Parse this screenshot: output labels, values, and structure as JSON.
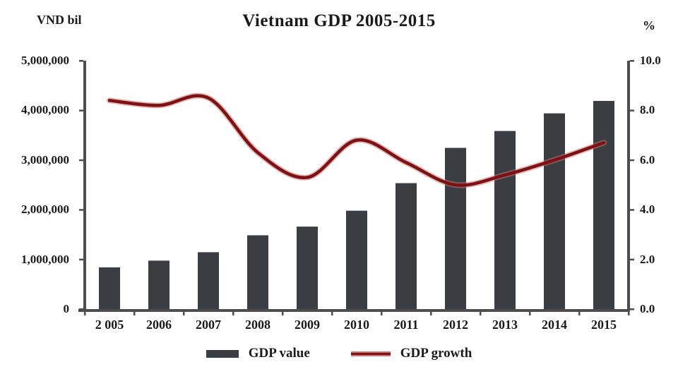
{
  "chart_data": {
    "type": "bar",
    "title": "Vietnam GDP 2005-2015",
    "categories": [
      "2 005",
      "2006",
      "2007",
      "2008",
      "2009",
      "2010",
      "2011",
      "2012",
      "2013",
      "2014",
      "2015"
    ],
    "series": [
      {
        "name": "GDP value",
        "type": "bar",
        "axis": "left",
        "unit": "VND bil",
        "values": [
          840000,
          975000,
          1145000,
          1485000,
          1660000,
          1980000,
          2535000,
          3245000,
          3585000,
          3940000,
          4190000
        ]
      },
      {
        "name": "GDP growth",
        "type": "line",
        "axis": "right",
        "unit": "%",
        "values": [
          8.4,
          8.2,
          8.5,
          6.3,
          5.3,
          6.8,
          5.9,
          5.0,
          5.4,
          6.0,
          6.7
        ]
      }
    ],
    "left_axis": {
      "label": "VND bil",
      "min": 0,
      "max": 5000000,
      "tick_labels": [
        "5,000,000",
        "4,000,000",
        "3,000,000",
        "2,000,000",
        "1,000,000",
        "0"
      ]
    },
    "right_axis": {
      "label": "%",
      "min": 0,
      "max": 10,
      "tick_labels": [
        "10.0",
        "8.0",
        "6.0",
        "4.0",
        "2.0",
        "0.0"
      ]
    },
    "legend": {
      "position": "bottom",
      "items": [
        "GDP value",
        "GDP growth"
      ]
    },
    "grid": false,
    "colors": {
      "bar": "#3a3e42",
      "line": "#7d1113",
      "line_halo": "#c57878",
      "axis": "#4d4d4d",
      "text": "#1a1a1a"
    }
  }
}
